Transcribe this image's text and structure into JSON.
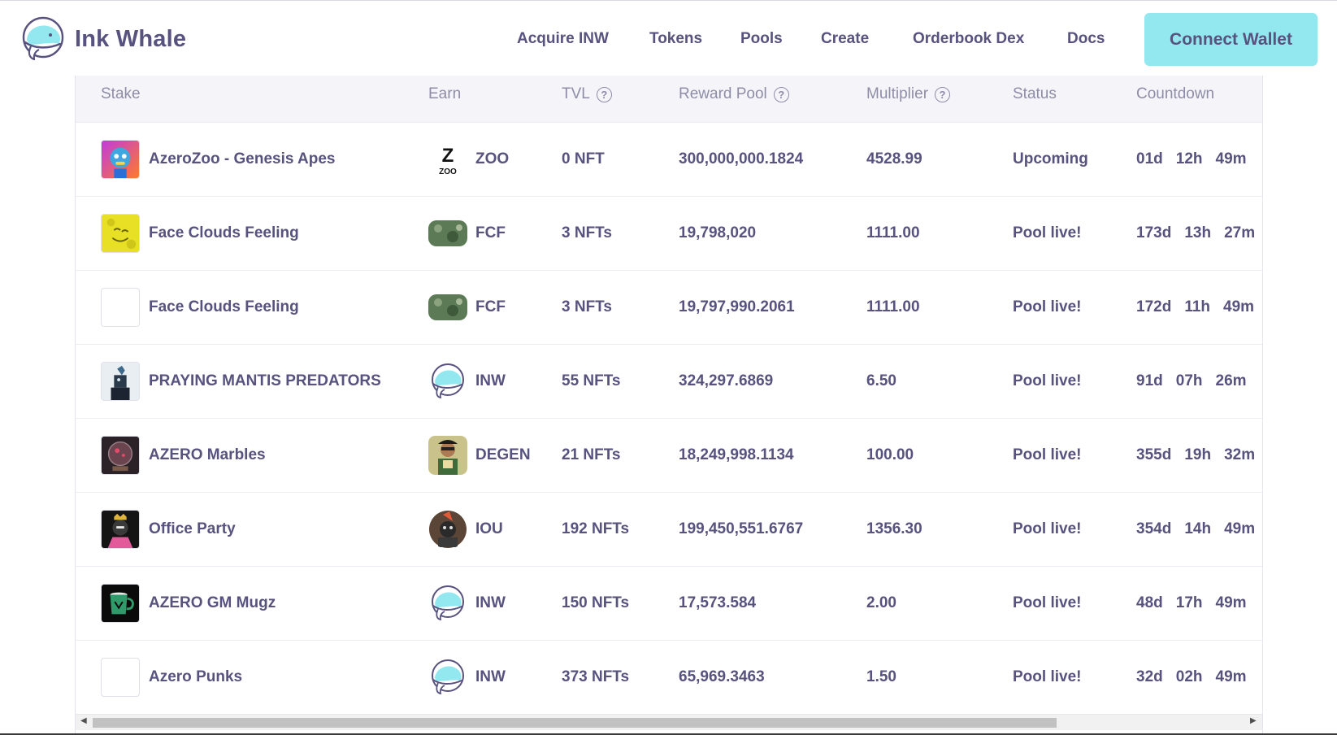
{
  "app": {
    "name": "Ink Whale",
    "logo_icon": "whale-logo-icon",
    "accent_color": "#93e8ef",
    "text_color": "#57527e"
  },
  "nav": {
    "items": [
      "Acquire INW",
      "Tokens",
      "Pools",
      "Create",
      "Orderbook Dex",
      "Docs"
    ],
    "connect_label": "Connect Wallet"
  },
  "table": {
    "headers": {
      "stake": "Stake",
      "earn": "Earn",
      "tvl": "TVL",
      "reward_pool": "Reward Pool",
      "multiplier": "Multiplier",
      "status": "Status",
      "countdown": "Countdown"
    },
    "help_glyph": "?",
    "rows": [
      {
        "stake": "AzeroZoo - Genesis Apes",
        "stake_icon": "ape-avatar-icon",
        "token": "ZOO",
        "token_icon": "zoo-token-icon",
        "tvl": "0 NFT",
        "reward_pool": "300,000,000.1824",
        "multiplier": "4528.99",
        "status": "Upcoming",
        "cd_d": "01d",
        "cd_h": "12h",
        "cd_m": "49m"
      },
      {
        "stake": "Face Clouds Feeling",
        "stake_icon": "yellow-face-avatar-icon",
        "token": "FCF",
        "token_icon": "fcf-token-icon",
        "tvl": "3 NFTs",
        "reward_pool": "19,798,020",
        "multiplier": "1111.00",
        "status": "Pool live!",
        "cd_d": "173d",
        "cd_h": "13h",
        "cd_m": "27m"
      },
      {
        "stake": "Face Clouds Feeling",
        "stake_icon": "blank-avatar-icon",
        "token": "FCF",
        "token_icon": "fcf-token-icon",
        "tvl": "3 NFTs",
        "reward_pool": "19,797,990.2061",
        "multiplier": "1111.00",
        "status": "Pool live!",
        "cd_d": "172d",
        "cd_h": "11h",
        "cd_m": "49m"
      },
      {
        "stake": "PRAYING MANTIS PREDATORS",
        "stake_icon": "mantis-avatar-icon",
        "token": "INW",
        "token_icon": "inw-whale-token-icon",
        "tvl": "55 NFTs",
        "reward_pool": "324,297.6869",
        "multiplier": "6.50",
        "status": "Pool live!",
        "cd_d": "91d",
        "cd_h": "07h",
        "cd_m": "26m"
      },
      {
        "stake": "AZERO Marbles",
        "stake_icon": "marble-avatar-icon",
        "token": "DEGEN",
        "token_icon": "degen-token-icon",
        "tvl": "21 NFTs",
        "reward_pool": "18,249,998.1134",
        "multiplier": "100.00",
        "status": "Pool live!",
        "cd_d": "355d",
        "cd_h": "19h",
        "cd_m": "32m"
      },
      {
        "stake": "Office Party",
        "stake_icon": "gorilla-avatar-icon",
        "token": "IOU",
        "token_icon": "iou-token-icon",
        "tvl": "192 NFTs",
        "reward_pool": "199,450,551.6767",
        "multiplier": "1356.30",
        "status": "Pool live!",
        "cd_d": "354d",
        "cd_h": "14h",
        "cd_m": "49m"
      },
      {
        "stake": "AZERO GM Mugz",
        "stake_icon": "mug-avatar-icon",
        "token": "INW",
        "token_icon": "inw-whale-token-icon",
        "tvl": "150 NFTs",
        "reward_pool": "17,573.584",
        "multiplier": "2.00",
        "status": "Pool live!",
        "cd_d": "48d",
        "cd_h": "17h",
        "cd_m": "49m"
      },
      {
        "stake": "Azero Punks",
        "stake_icon": "blank-avatar-icon",
        "token": "INW",
        "token_icon": "inw-whale-token-icon",
        "tvl": "373 NFTs",
        "reward_pool": "65,969.3463",
        "multiplier": "1.50",
        "status": "Pool live!",
        "cd_d": "32d",
        "cd_h": "02h",
        "cd_m": "49m"
      }
    ]
  },
  "scrollbar": {
    "left_arrow": "◀",
    "right_arrow": "▶"
  }
}
